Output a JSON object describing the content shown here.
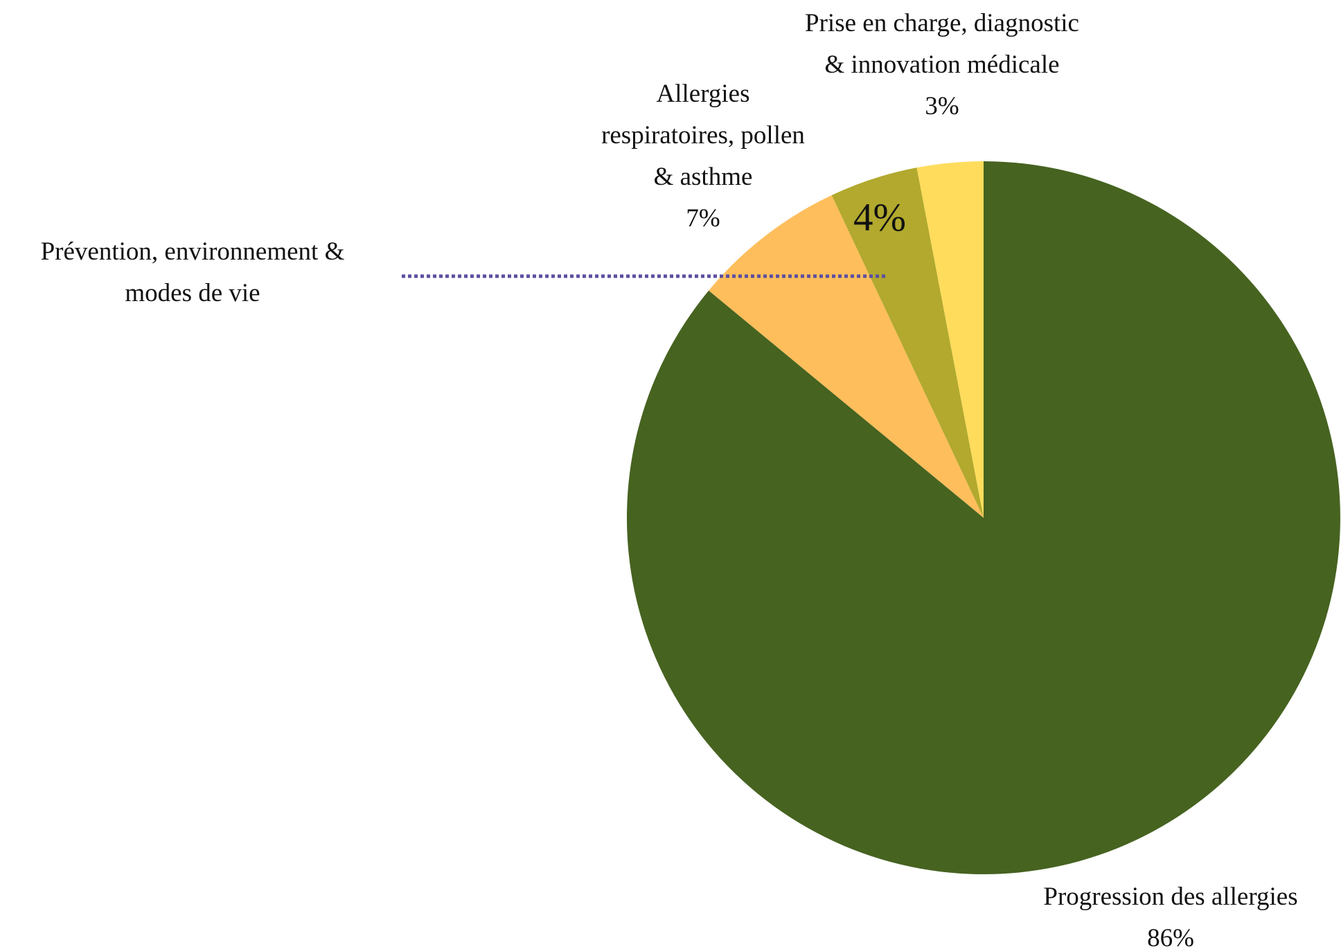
{
  "chart_data": {
    "type": "pie",
    "categories": [
      "Progression des allergies",
      "Allergies respiratoires, pollen & asthme",
      "Prévention, environnement & modes de vie",
      "Prise en charge, diagnostic & innovation médicale"
    ],
    "values": [
      86,
      7,
      4,
      3
    ],
    "value_labels": [
      "86%",
      "7%",
      "4%",
      "3%"
    ],
    "colors": [
      "#466320",
      "#ffbe5c",
      "#b2a92e",
      "#ffdc5c"
    ]
  }
}
